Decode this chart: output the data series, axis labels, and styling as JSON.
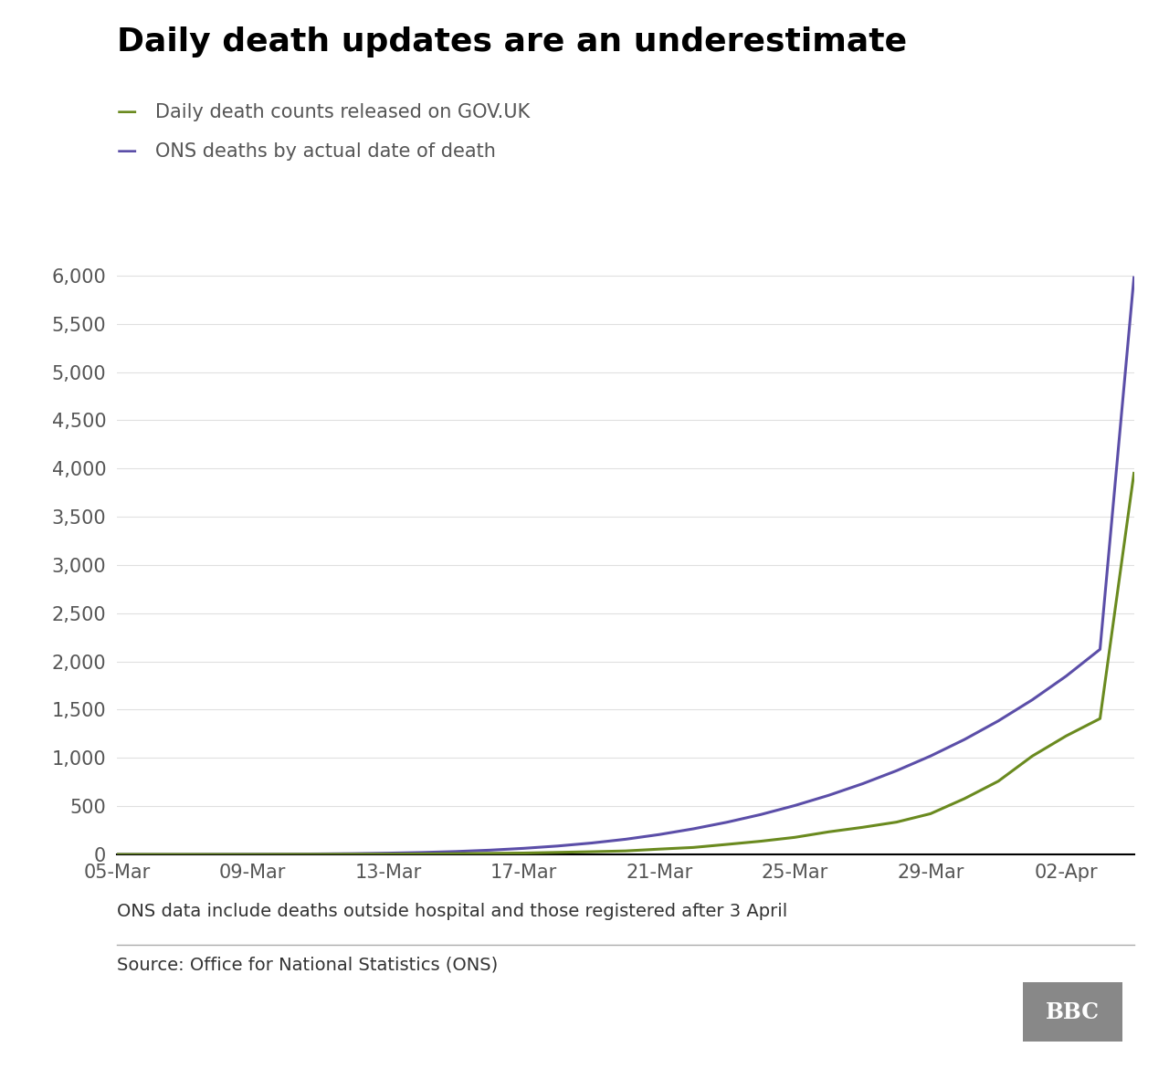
{
  "title": "Daily death updates are an underestimate",
  "title_fontsize": 26,
  "title_fontweight": "bold",
  "legend_labels": [
    "Daily death counts released on GOV.UK",
    "ONS deaths by actual date of death"
  ],
  "gov_color": "#6a8a1f",
  "ons_color": "#5b4ea8",
  "line_width": 2.2,
  "x_tick_labels": [
    "05-Mar",
    "09-Mar",
    "13-Mar",
    "17-Mar",
    "21-Mar",
    "25-Mar",
    "29-Mar",
    "02-Apr"
  ],
  "ylim": [
    0,
    6200
  ],
  "yticks": [
    0,
    500,
    1000,
    1500,
    2000,
    2500,
    3000,
    3500,
    4000,
    4500,
    5000,
    5500,
    6000
  ],
  "footnote": "ONS data include deaths outside hospital and those registered after 3 April",
  "source": "Source: Office for National Statistics (ONS)",
  "background_color": "#ffffff",
  "gov_y": [
    0,
    0,
    0,
    0,
    0,
    1,
    1,
    2,
    3,
    5,
    8,
    11,
    14,
    21,
    28,
    36,
    55,
    72,
    104,
    137,
    177,
    234,
    281,
    335,
    422,
    578,
    759,
    1019,
    1228,
    1408,
    3951
  ],
  "ons_y": [
    0,
    0,
    0,
    1,
    2,
    3,
    5,
    8,
    13,
    20,
    30,
    44,
    63,
    87,
    118,
    157,
    206,
    265,
    334,
    414,
    507,
    613,
    733,
    868,
    1020,
    1191,
    1384,
    1602,
    1848,
    2126,
    5979
  ]
}
